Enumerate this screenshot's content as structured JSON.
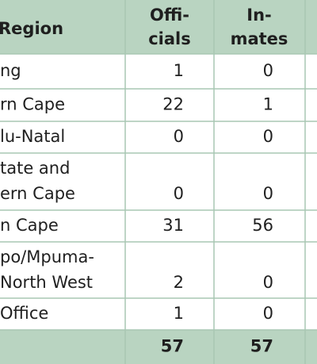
{
  "table": {
    "header": {
      "region": "Region",
      "officials": [
        "Offi-",
        "cials"
      ],
      "inmates": [
        "In-",
        "mates"
      ]
    },
    "rows": [
      {
        "region": [
          "ng"
        ],
        "officials": 1,
        "inmates": 0
      },
      {
        "region": [
          "rn Cape"
        ],
        "officials": 22,
        "inmates": 1
      },
      {
        "region": [
          "lu-Natal"
        ],
        "officials": 0,
        "inmates": 0
      },
      {
        "region": [
          "tate and",
          "ern Cape"
        ],
        "officials": 0,
        "inmates": 0
      },
      {
        "region": [
          "n Cape"
        ],
        "officials": 31,
        "inmates": 56
      },
      {
        "region": [
          "po/Mpuma-",
          "North West"
        ],
        "officials": 2,
        "inmates": 0
      },
      {
        "region": [
          "Office"
        ],
        "officials": 1,
        "inmates": 0
      }
    ],
    "total": {
      "officials": 57,
      "inmates": 57
    }
  }
}
